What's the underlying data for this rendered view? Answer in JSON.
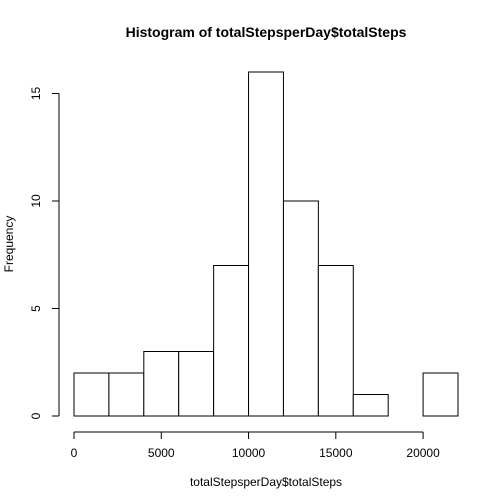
{
  "chart_data": {
    "type": "bar",
    "title": "Histogram of totalStepsperDay$totalSteps",
    "xlabel": "totalStepsperDay$totalSteps",
    "ylabel": "Frequency",
    "bin_edges": [
      0,
      2000,
      4000,
      6000,
      8000,
      10000,
      12000,
      14000,
      16000,
      18000,
      20000,
      22000
    ],
    "values": [
      2,
      2,
      3,
      3,
      7,
      16,
      10,
      7,
      1,
      0,
      2
    ],
    "xlim": [
      0,
      22000
    ],
    "ylim": [
      0,
      16
    ],
    "x_ticks": [
      0,
      5000,
      10000,
      15000,
      20000
    ],
    "y_ticks": [
      0,
      5,
      10,
      15
    ],
    "x_tick_labels": [
      "0",
      "5000",
      "10000",
      "15000",
      "20000"
    ],
    "y_tick_labels": [
      "0",
      "5",
      "10",
      "15"
    ],
    "bar_fill": "#ffffff",
    "bar_stroke": "#000000",
    "grid": false
  }
}
